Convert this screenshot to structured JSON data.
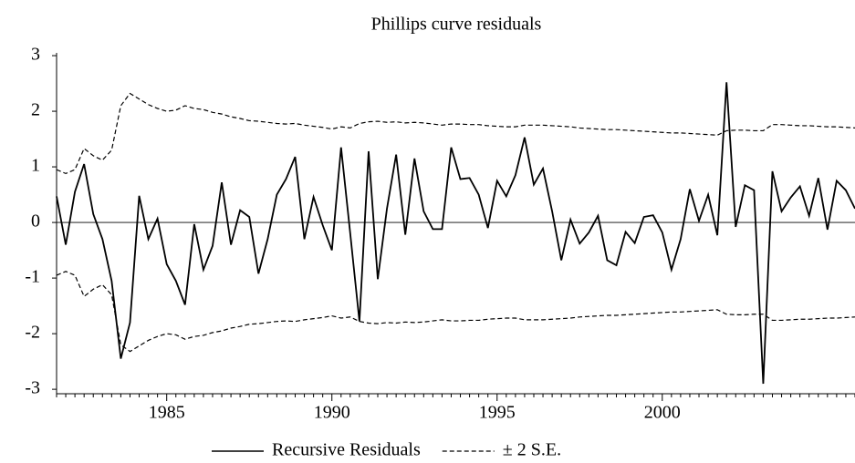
{
  "chart_data": {
    "type": "line",
    "title": "Phillips curve residuals",
    "categories": [
      null,
      null,
      null,
      null,
      null,
      null,
      null,
      null,
      null,
      null,
      null,
      null,
      "1985",
      null,
      null,
      null,
      null,
      null,
      null,
      null,
      null,
      null,
      null,
      null,
      null,
      null,
      null,
      null,
      null,
      null,
      "1990",
      null,
      null,
      null,
      null,
      null,
      null,
      null,
      null,
      null,
      null,
      null,
      null,
      null,
      null,
      null,
      null,
      null,
      "1995",
      null,
      null,
      null,
      null,
      null,
      null,
      null,
      null,
      null,
      null,
      null,
      null,
      null,
      null,
      null,
      null,
      null,
      "2000",
      null,
      null,
      null,
      null,
      null,
      null,
      null,
      null,
      null,
      null,
      null,
      null,
      null,
      null,
      null,
      null,
      null,
      null,
      null,
      null,
      null
    ],
    "series": [
      {
        "name": "Recursive Residuals",
        "color": "#000000",
        "dash": false,
        "values": [
          0.47,
          -0.4,
          0.55,
          1.05,
          0.15,
          -0.3,
          -1.05,
          -2.45,
          -1.8,
          0.48,
          -0.3,
          0.07,
          -0.75,
          -1.05,
          -1.48,
          -0.03,
          -0.85,
          -0.42,
          0.72,
          -0.4,
          0.22,
          0.1,
          -0.92,
          -0.3,
          0.5,
          0.78,
          1.18,
          -0.3,
          0.46,
          -0.05,
          -0.5,
          1.35,
          -0.2,
          -1.78,
          1.28,
          -1.02,
          0.25,
          1.22,
          -0.22,
          1.15,
          0.2,
          -0.12,
          -0.12,
          1.35,
          0.78,
          0.8,
          0.5,
          -0.1,
          0.75,
          0.47,
          0.85,
          1.53,
          0.68,
          0.97,
          0.2,
          -0.68,
          0.05,
          -0.38,
          -0.18,
          0.12,
          -0.68,
          -0.77,
          -0.17,
          -0.37,
          0.1,
          0.13,
          -0.18,
          -0.85,
          -0.3,
          0.6,
          0.03,
          0.5,
          -0.23,
          2.52,
          -0.08,
          0.67,
          0.58,
          -2.9,
          0.92,
          0.2,
          0.45,
          0.65,
          0.12,
          0.8,
          -0.13,
          0.75,
          0.58,
          0.25
        ]
      },
      {
        "name": "± 2 S.E.",
        "color": "#000000",
        "dash": true,
        "values": [
          0.95,
          0.88,
          0.95,
          1.33,
          1.2,
          1.12,
          1.3,
          2.1,
          2.32,
          2.22,
          2.12,
          2.05,
          2.0,
          2.02,
          2.1,
          2.05,
          2.03,
          1.98,
          1.95,
          1.9,
          1.87,
          1.83,
          1.82,
          1.8,
          1.78,
          1.77,
          1.78,
          1.75,
          1.73,
          1.71,
          1.68,
          1.72,
          1.7,
          1.78,
          1.81,
          1.82,
          1.8,
          1.81,
          1.79,
          1.8,
          1.79,
          1.77,
          1.75,
          1.77,
          1.77,
          1.76,
          1.76,
          1.74,
          1.73,
          1.72,
          1.72,
          1.75,
          1.75,
          1.75,
          1.74,
          1.73,
          1.72,
          1.7,
          1.69,
          1.68,
          1.67,
          1.67,
          1.66,
          1.65,
          1.64,
          1.63,
          1.62,
          1.61,
          1.61,
          1.6,
          1.59,
          1.58,
          1.57,
          1.65,
          1.66,
          1.66,
          1.65,
          1.65,
          1.76,
          1.76,
          1.75,
          1.74,
          1.74,
          1.73,
          1.72,
          1.72,
          1.71,
          1.7
        ]
      },
      {
        "color": "#000000",
        "dash": true,
        "values": [
          -0.95,
          -0.88,
          -0.95,
          -1.33,
          -1.2,
          -1.12,
          -1.3,
          -2.2,
          -2.32,
          -2.22,
          -2.12,
          -2.05,
          -2.0,
          -2.02,
          -2.1,
          -2.05,
          -2.03,
          -1.98,
          -1.95,
          -1.9,
          -1.87,
          -1.83,
          -1.82,
          -1.8,
          -1.78,
          -1.77,
          -1.78,
          -1.75,
          -1.73,
          -1.71,
          -1.68,
          -1.72,
          -1.7,
          -1.78,
          -1.81,
          -1.82,
          -1.8,
          -1.81,
          -1.79,
          -1.8,
          -1.79,
          -1.77,
          -1.75,
          -1.77,
          -1.77,
          -1.76,
          -1.76,
          -1.74,
          -1.73,
          -1.72,
          -1.72,
          -1.75,
          -1.75,
          -1.75,
          -1.74,
          -1.73,
          -1.72,
          -1.7,
          -1.69,
          -1.68,
          -1.67,
          -1.67,
          -1.66,
          -1.65,
          -1.64,
          -1.63,
          -1.62,
          -1.61,
          -1.61,
          -1.6,
          -1.59,
          -1.58,
          -1.57,
          -1.65,
          -1.66,
          -1.66,
          -1.65,
          -1.65,
          -1.76,
          -1.76,
          -1.75,
          -1.74,
          -1.74,
          -1.73,
          -1.72,
          -1.72,
          -1.71,
          -1.7
        ]
      }
    ],
    "ylim": [
      -3.08,
      3.05
    ],
    "yticks": [
      -3,
      -2,
      -1,
      0,
      1,
      2,
      3
    ],
    "zero_line": true,
    "legend": "bottom"
  }
}
